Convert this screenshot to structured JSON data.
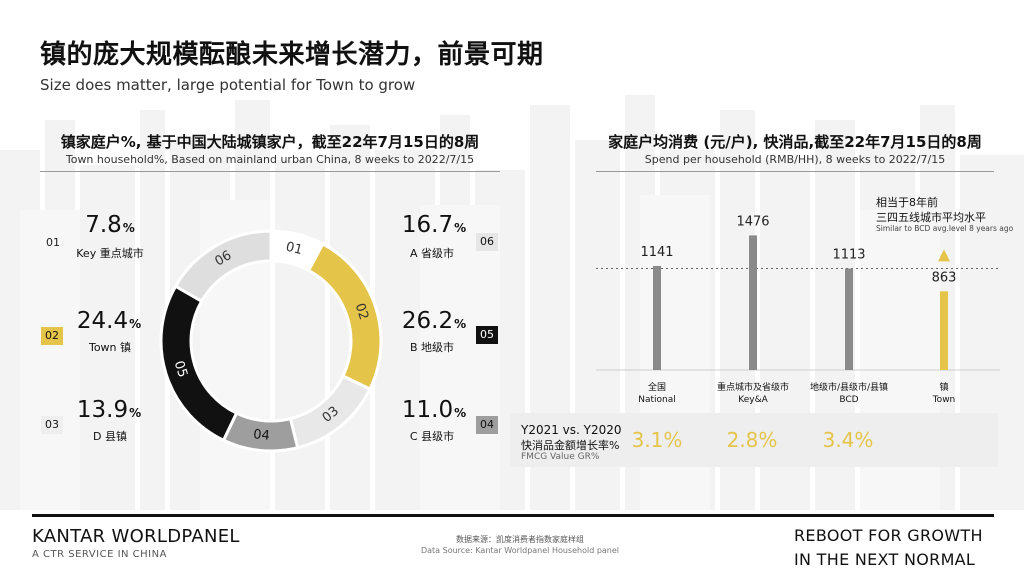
{
  "title": {
    "cn": "镇的庞大规模酝酿未来增长潜力，前景可期",
    "en": "Size does matter, large potential for Town to grow"
  },
  "colors": {
    "gold": "#e5c44a",
    "black": "#111111",
    "dark_gray": "#9e9e9e",
    "light_gray": "#dedede",
    "bar_gray": "#8a8a8a"
  },
  "chart_data": [
    {
      "type": "pie",
      "title": "镇家庭户%, 基于中国大陆城镇家户，截至22年7月15日的8周",
      "subtitle": "Town household%, Based on mainland urban China, 8 weeks to 2022/7/15",
      "unit": "%",
      "segments": [
        {
          "id": "01",
          "name": "Key 重点城市",
          "value": 7.8,
          "color": "#ffffff"
        },
        {
          "id": "02",
          "name": "Town 镇",
          "value": 24.4,
          "color": "#e5c44a"
        },
        {
          "id": "03",
          "name": "D 县镇",
          "value": 13.9,
          "color": "#e8e8e8"
        },
        {
          "id": "04",
          "name": "C 县级市",
          "value": 11.0,
          "color": "#9e9e9e"
        },
        {
          "id": "05",
          "name": "B 地级市",
          "value": 26.2,
          "color": "#111111"
        },
        {
          "id": "06",
          "name": "A 省级市",
          "value": 16.7,
          "color": "#dedede"
        }
      ]
    },
    {
      "type": "bar",
      "title": "家庭户均消费 (元/户), 快消品,截至22年7月15日的8周",
      "subtitle": "Spend per household (RMB/HH), 8 weeks to 2022/7/15",
      "categories": [
        "全国 National",
        "重点城市及省级市 Key&A",
        "地级市/县级市/县镇 BCD",
        "镇 Town"
      ],
      "category_cn": [
        "全国",
        "重点城市及省级市",
        "地级市/县级市/县镇",
        "镇"
      ],
      "category_en": [
        "National",
        "Key&A",
        "BCD",
        "Town"
      ],
      "values": [
        1141,
        1476,
        1113,
        863
      ],
      "ylim": [
        0,
        1700
      ],
      "reference_line": 1113,
      "annotation": {
        "cn_line1": "相当于8年前",
        "cn_line2": "三四五线城市平均水平",
        "en": "Similar to BCD avg.level 8 years ago"
      }
    },
    {
      "type": "table",
      "title_line1": "Y2021 vs. Y2020",
      "title_line2": "快消品金额增长率%",
      "title_line3": "FMCG Value GR%",
      "values": [
        "3.1%",
        "2.8%",
        "3.4%"
      ]
    }
  ],
  "footer": {
    "brand": "KANTAR WORLDPANEL",
    "brand_sub": "A CTR SERVICE IN CHINA",
    "source_cn": "数据来源：凯度消费者指数家庭样组",
    "source_en": "Data Source: Kantar Worldpanel Household panel",
    "tagline_line1": "REBOOT FOR GROWTH",
    "tagline_line2": "IN THE NEXT NORMAL"
  }
}
